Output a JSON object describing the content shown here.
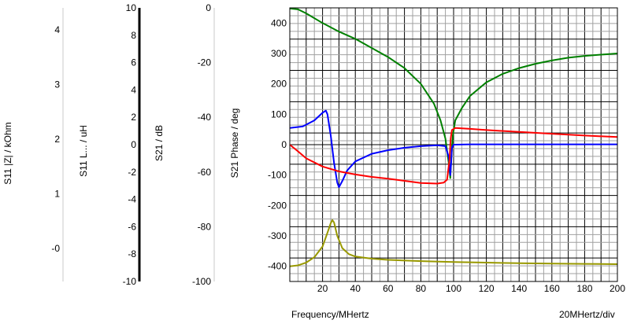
{
  "chart_data": {
    "type": "line",
    "xlabel": "Frequency/MHertz",
    "x_scale_note": "20MHertz/div",
    "xlim": [
      0,
      200
    ],
    "x_ticks": [
      20,
      40,
      60,
      80,
      100,
      120,
      140,
      160,
      180,
      200
    ],
    "grid": true,
    "axes": [
      {
        "id": "zmag",
        "label": "S11 |Z| / kOhm",
        "range": [
          -0.6,
          4.4
        ],
        "ticks": [
          {
            "v": 4,
            "t": "4"
          },
          {
            "v": 3,
            "t": "3"
          },
          {
            "v": 2,
            "t": "2"
          },
          {
            "v": 1,
            "t": "1"
          },
          {
            "v": 0,
            "t": "-0"
          }
        ]
      },
      {
        "id": "ind",
        "label": "S11 L... / uH",
        "range": [
          -10,
          10
        ],
        "ticks": [
          {
            "v": 10,
            "t": "10"
          },
          {
            "v": 8,
            "t": "8"
          },
          {
            "v": 6,
            "t": "6"
          },
          {
            "v": 4,
            "t": "4"
          },
          {
            "v": 2,
            "t": "2"
          },
          {
            "v": 0,
            "t": "0"
          },
          {
            "v": -2,
            "t": "-2"
          },
          {
            "v": -4,
            "t": "-4"
          },
          {
            "v": -6,
            "t": "-6"
          },
          {
            "v": -8,
            "t": "-8"
          },
          {
            "v": -10,
            "t": "-10"
          }
        ]
      },
      {
        "id": "s21db",
        "label": "S21 / dB",
        "range": [
          -100,
          0
        ],
        "ticks": [
          {
            "v": 0,
            "t": "0"
          },
          {
            "v": -20,
            "t": "-20"
          },
          {
            "v": -40,
            "t": "-40"
          },
          {
            "v": -60,
            "t": "-60"
          },
          {
            "v": -80,
            "t": "-80"
          },
          {
            "v": -100,
            "t": "-100"
          }
        ]
      },
      {
        "id": "phase",
        "label": "S21 Phase / deg",
        "range": [
          -450,
          450
        ],
        "ticks": [
          {
            "v": 400,
            "t": "400"
          },
          {
            "v": 300,
            "t": "300"
          },
          {
            "v": 200,
            "t": "200"
          },
          {
            "v": 100,
            "t": "100"
          },
          {
            "v": 0,
            "t": "0"
          },
          {
            "v": -100,
            "t": "-100"
          },
          {
            "v": -200,
            "t": "-200"
          },
          {
            "v": -300,
            "t": "-300"
          },
          {
            "v": -400,
            "t": "-400"
          }
        ]
      }
    ],
    "series": [
      {
        "id": "green",
        "color": "#008000",
        "axis": "phase",
        "points": [
          [
            0,
            448
          ],
          [
            5,
            445
          ],
          [
            10,
            432
          ],
          [
            20,
            400
          ],
          [
            30,
            372
          ],
          [
            40,
            348
          ],
          [
            50,
            318
          ],
          [
            60,
            288
          ],
          [
            70,
            252
          ],
          [
            80,
            200
          ],
          [
            88,
            135
          ],
          [
            92,
            80
          ],
          [
            95,
            20
          ],
          [
            97,
            -60
          ],
          [
            98,
            -110
          ],
          [
            98.6,
            -40
          ],
          [
            99.5,
            30
          ],
          [
            101,
            80
          ],
          [
            105,
            120
          ],
          [
            110,
            160
          ],
          [
            120,
            205
          ],
          [
            130,
            233
          ],
          [
            140,
            252
          ],
          [
            150,
            266
          ],
          [
            160,
            277
          ],
          [
            170,
            286
          ],
          [
            180,
            292
          ],
          [
            190,
            296
          ],
          [
            200,
            300
          ]
        ]
      },
      {
        "id": "blue",
        "color": "#0000ff",
        "axis": "phase",
        "points": [
          [
            0,
            55
          ],
          [
            8,
            60
          ],
          [
            15,
            80
          ],
          [
            20,
            105
          ],
          [
            22,
            112
          ],
          [
            23,
            100
          ],
          [
            25,
            30
          ],
          [
            27,
            -60
          ],
          [
            29,
            -125
          ],
          [
            30,
            -140
          ],
          [
            32,
            -120
          ],
          [
            35,
            -85
          ],
          [
            40,
            -55
          ],
          [
            50,
            -30
          ],
          [
            60,
            -18
          ],
          [
            70,
            -10
          ],
          [
            80,
            -5
          ],
          [
            90,
            -2
          ],
          [
            95,
            -5
          ],
          [
            97,
            -40
          ],
          [
            98,
            -100
          ],
          [
            98.5,
            -60
          ],
          [
            99,
            -10
          ],
          [
            100,
            0
          ],
          [
            110,
            1
          ],
          [
            140,
            1
          ],
          [
            170,
            1
          ],
          [
            200,
            1
          ]
        ]
      },
      {
        "id": "red",
        "color": "#ff0000",
        "axis": "phase",
        "points": [
          [
            0,
            0
          ],
          [
            5,
            -22
          ],
          [
            10,
            -45
          ],
          [
            20,
            -72
          ],
          [
            30,
            -88
          ],
          [
            40,
            -98
          ],
          [
            50,
            -106
          ],
          [
            60,
            -112
          ],
          [
            70,
            -119
          ],
          [
            80,
            -126
          ],
          [
            90,
            -128
          ],
          [
            94,
            -125
          ],
          [
            96,
            -115
          ],
          [
            97.5,
            -50
          ],
          [
            98.2,
            20
          ],
          [
            99,
            48
          ],
          [
            101,
            55
          ],
          [
            110,
            52
          ],
          [
            120,
            48
          ],
          [
            140,
            42
          ],
          [
            160,
            36
          ],
          [
            180,
            30
          ],
          [
            200,
            25
          ]
        ]
      },
      {
        "id": "olive",
        "color": "#999900",
        "axis": "phase",
        "points": [
          [
            0,
            -400
          ],
          [
            5,
            -397
          ],
          [
            10,
            -388
          ],
          [
            15,
            -370
          ],
          [
            20,
            -335
          ],
          [
            23,
            -290
          ],
          [
            25,
            -258
          ],
          [
            26,
            -248
          ],
          [
            27,
            -256
          ],
          [
            29,
            -300
          ],
          [
            32,
            -340
          ],
          [
            36,
            -360
          ],
          [
            40,
            -368
          ],
          [
            50,
            -375
          ],
          [
            60,
            -379
          ],
          [
            80,
            -383
          ],
          [
            100,
            -386
          ],
          [
            120,
            -388
          ],
          [
            140,
            -390
          ],
          [
            160,
            -391
          ],
          [
            180,
            -392
          ],
          [
            200,
            -393
          ]
        ]
      }
    ]
  }
}
